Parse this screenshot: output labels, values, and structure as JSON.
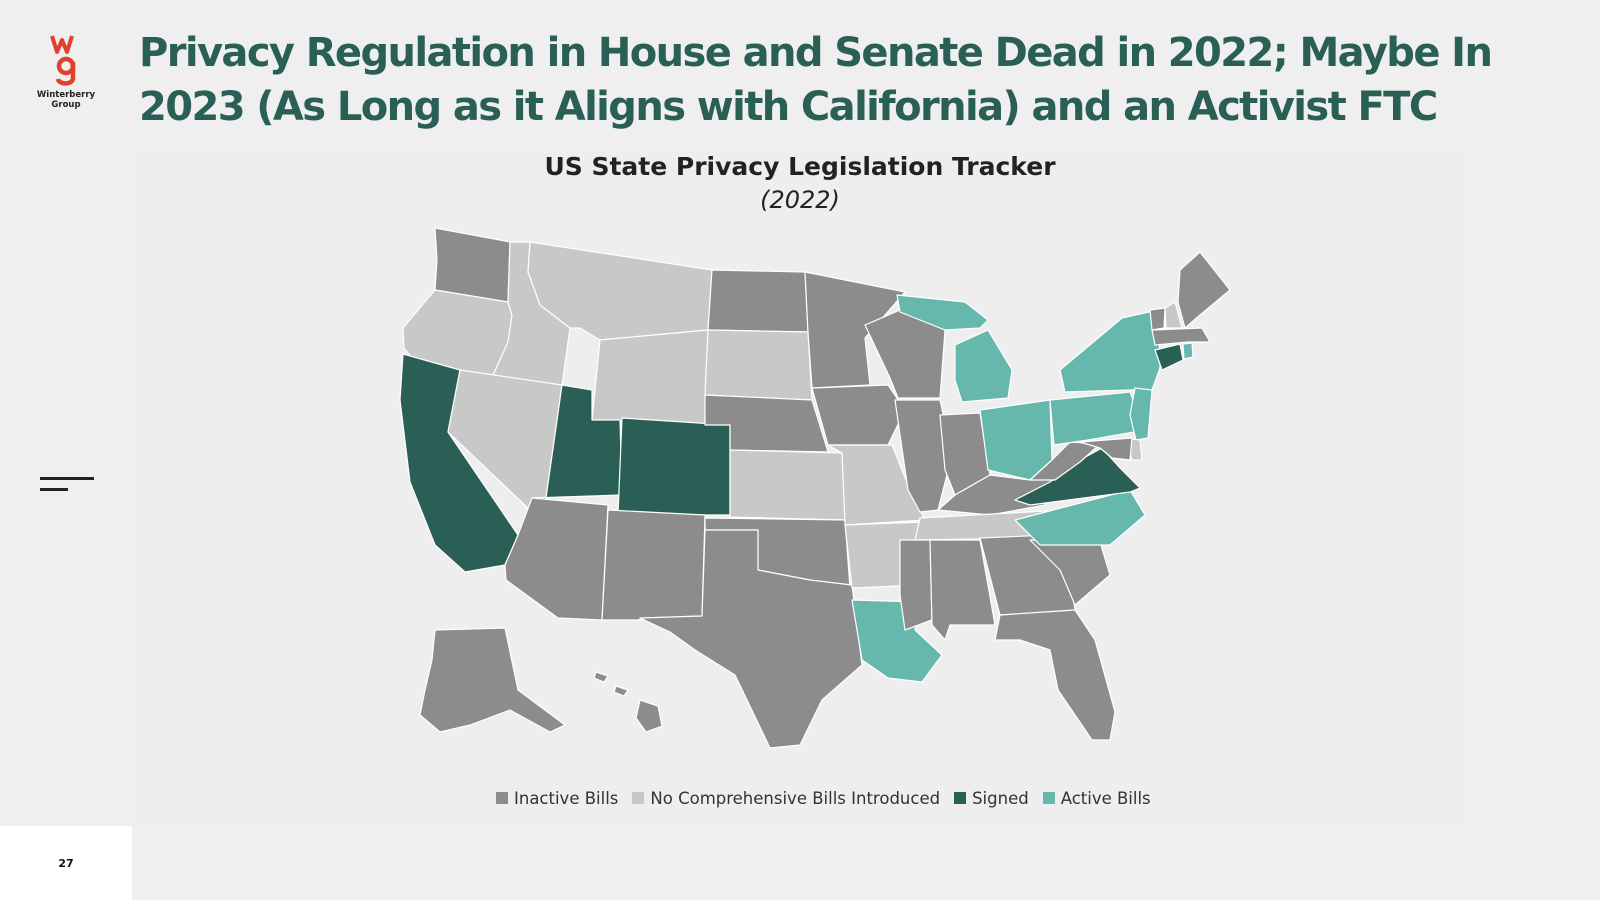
{
  "brand": {
    "name": "Winterberry Group",
    "logo_line1": "Winterberry",
    "logo_line2": "Group",
    "logo_mark": "wg",
    "logo_color": "#e0402c"
  },
  "slide": {
    "title": "Privacy Regulation in House and Senate Dead in 2022; Maybe In 2023 (As Long as it Aligns with California) and an Activist FTC",
    "title_color": "#2a5f56",
    "page_number": "27"
  },
  "map": {
    "title": "US State Privacy Legislation Tracker",
    "subtitle": "(2022)",
    "categories": {
      "inactive": {
        "label": "Inactive Bills",
        "color": "#8c8c8c"
      },
      "none": {
        "label": "No Comprehensive Bills Introduced",
        "color": "#c8c8c8"
      },
      "signed": {
        "label": "Signed",
        "color": "#2a5f56"
      },
      "active": {
        "label": "Active Bills",
        "color": "#66b8ac"
      }
    },
    "states": {
      "WA": "inactive",
      "OR": "none",
      "CA": "signed",
      "ID": "none",
      "NV": "none",
      "MT": "none",
      "WY": "none",
      "UT": "signed",
      "CO": "signed",
      "AZ": "inactive",
      "NM": "inactive",
      "ND": "inactive",
      "SD": "none",
      "NE": "inactive",
      "KS": "none",
      "OK": "inactive",
      "TX": "inactive",
      "MN": "inactive",
      "IA": "inactive",
      "MO": "none",
      "AR": "none",
      "LA": "active",
      "WI": "inactive",
      "IL": "inactive",
      "MI": "active",
      "IN": "inactive",
      "OH": "active",
      "KY": "inactive",
      "TN": "none",
      "MS": "inactive",
      "AL": "inactive",
      "GA": "inactive",
      "FL": "inactive",
      "SC": "inactive",
      "NC": "active",
      "VA": "signed",
      "WV": "inactive",
      "PA": "active",
      "NY": "active",
      "NJ": "active",
      "DE": "none",
      "MD": "inactive",
      "CT": "signed",
      "RI": "active",
      "MA": "inactive",
      "VT": "inactive",
      "NH": "none",
      "ME": "inactive",
      "AK": "inactive",
      "HI": "inactive"
    },
    "legend_order": [
      "inactive",
      "none",
      "signed",
      "active"
    ]
  }
}
